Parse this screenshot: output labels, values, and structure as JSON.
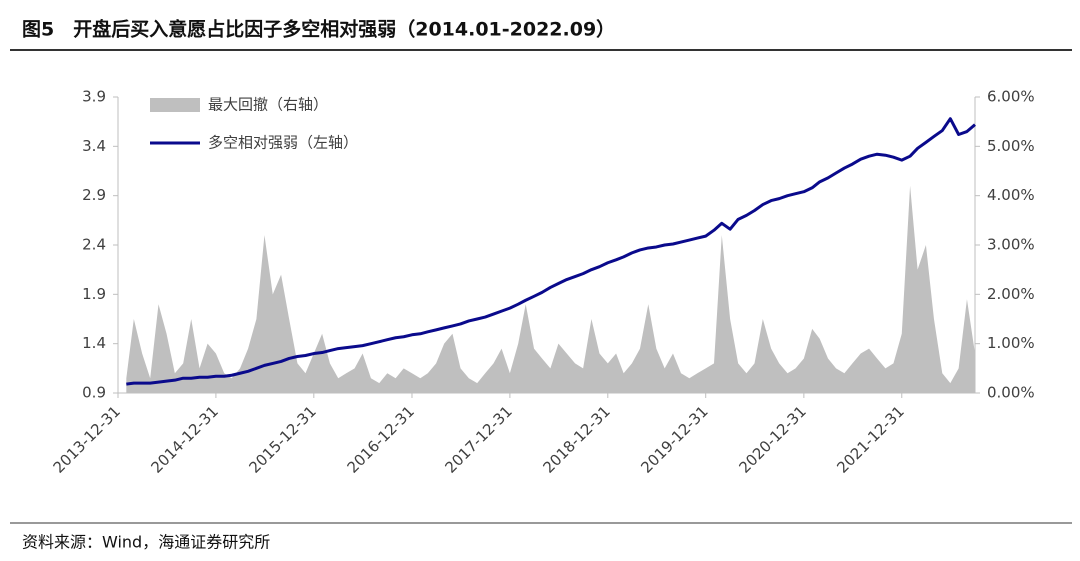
{
  "chart_data": {
    "type": "combo",
    "title": "图5　开盘后买入意愿占比因子多空相对强弱（2014.01-2022.09）",
    "source": "资料来源：Wind，海通证券研究所",
    "x": [
      "2014-01-31",
      "2014-02-28",
      "2014-03-31",
      "2014-04-30",
      "2014-05-31",
      "2014-06-30",
      "2014-07-31",
      "2014-08-31",
      "2014-09-30",
      "2014-10-31",
      "2014-11-30",
      "2014-12-31",
      "2015-01-31",
      "2015-02-28",
      "2015-03-31",
      "2015-04-30",
      "2015-05-31",
      "2015-06-30",
      "2015-07-31",
      "2015-08-31",
      "2015-09-30",
      "2015-10-31",
      "2015-11-30",
      "2015-12-31",
      "2016-01-31",
      "2016-02-29",
      "2016-03-31",
      "2016-04-30",
      "2016-05-31",
      "2016-06-30",
      "2016-07-31",
      "2016-08-31",
      "2016-09-30",
      "2016-10-31",
      "2016-11-30",
      "2016-12-31",
      "2017-01-31",
      "2017-02-28",
      "2017-03-31",
      "2017-04-30",
      "2017-05-31",
      "2017-06-30",
      "2017-07-31",
      "2017-08-31",
      "2017-09-30",
      "2017-10-31",
      "2017-11-30",
      "2017-12-31",
      "2018-01-31",
      "2018-02-28",
      "2018-03-31",
      "2018-04-30",
      "2018-05-31",
      "2018-06-30",
      "2018-07-31",
      "2018-08-31",
      "2018-09-30",
      "2018-10-31",
      "2018-11-30",
      "2018-12-31",
      "2019-01-31",
      "2019-02-28",
      "2019-03-31",
      "2019-04-30",
      "2019-05-31",
      "2019-06-30",
      "2019-07-31",
      "2019-08-31",
      "2019-09-30",
      "2019-10-31",
      "2019-11-30",
      "2019-12-31",
      "2020-01-31",
      "2020-02-29",
      "2020-03-31",
      "2020-04-30",
      "2020-05-31",
      "2020-06-30",
      "2020-07-31",
      "2020-08-31",
      "2020-09-30",
      "2020-10-31",
      "2020-11-30",
      "2020-12-31",
      "2021-01-31",
      "2021-02-28",
      "2021-03-31",
      "2021-04-30",
      "2021-05-31",
      "2021-06-30",
      "2021-07-31",
      "2021-08-31",
      "2021-09-30",
      "2021-10-31",
      "2021-11-30",
      "2021-12-31",
      "2022-01-31",
      "2022-02-28",
      "2022-03-31",
      "2022-04-30",
      "2022-05-31",
      "2022-06-30",
      "2022-07-31",
      "2022-08-31",
      "2022-09-30"
    ],
    "series": [
      {
        "name": "最大回撤（右轴）",
        "kind": "area",
        "axis": "y2",
        "color": "#bfbfbf",
        "values": [
          0.3,
          1.5,
          0.8,
          0.3,
          1.8,
          1.2,
          0.4,
          0.6,
          1.5,
          0.5,
          1.0,
          0.8,
          0.4,
          0.3,
          0.5,
          0.9,
          1.5,
          3.2,
          2.0,
          2.4,
          1.5,
          0.6,
          0.4,
          0.8,
          1.2,
          0.6,
          0.3,
          0.4,
          0.5,
          0.8,
          0.3,
          0.2,
          0.4,
          0.3,
          0.5,
          0.4,
          0.3,
          0.4,
          0.6,
          1.0,
          1.2,
          0.5,
          0.3,
          0.2,
          0.4,
          0.6,
          0.9,
          0.4,
          1.0,
          1.8,
          0.9,
          0.7,
          0.5,
          1.0,
          0.8,
          0.6,
          0.5,
          1.5,
          0.8,
          0.6,
          0.8,
          0.4,
          0.6,
          0.9,
          1.8,
          0.9,
          0.5,
          0.8,
          0.4,
          0.3,
          0.4,
          0.5,
          0.6,
          3.2,
          1.5,
          0.6,
          0.4,
          0.6,
          1.5,
          0.9,
          0.6,
          0.4,
          0.5,
          0.7,
          1.3,
          1.1,
          0.7,
          0.5,
          0.4,
          0.6,
          0.8,
          0.9,
          0.7,
          0.5,
          0.6,
          1.2,
          4.2,
          2.5,
          3.0,
          1.5,
          0.4,
          0.2,
          0.5,
          1.9,
          0.8
        ]
      },
      {
        "name": "多空相对强弱（左轴）",
        "kind": "line",
        "axis": "y",
        "color": "#0a0a8c",
        "values": [
          0.99,
          1.0,
          1.0,
          1.0,
          1.01,
          1.02,
          1.03,
          1.05,
          1.05,
          1.06,
          1.06,
          1.07,
          1.07,
          1.08,
          1.1,
          1.12,
          1.15,
          1.18,
          1.2,
          1.22,
          1.25,
          1.27,
          1.28,
          1.3,
          1.31,
          1.33,
          1.35,
          1.36,
          1.37,
          1.38,
          1.4,
          1.42,
          1.44,
          1.46,
          1.47,
          1.49,
          1.5,
          1.52,
          1.54,
          1.56,
          1.58,
          1.6,
          1.63,
          1.65,
          1.67,
          1.7,
          1.73,
          1.76,
          1.8,
          1.84,
          1.88,
          1.92,
          1.97,
          2.01,
          2.05,
          2.08,
          2.11,
          2.15,
          2.18,
          2.22,
          2.25,
          2.28,
          2.32,
          2.35,
          2.37,
          2.38,
          2.4,
          2.41,
          2.43,
          2.45,
          2.47,
          2.49,
          2.55,
          2.62,
          2.56,
          2.66,
          2.7,
          2.75,
          2.81,
          2.85,
          2.87,
          2.9,
          2.92,
          2.94,
          2.98,
          3.04,
          3.08,
          3.13,
          3.18,
          3.22,
          3.27,
          3.3,
          3.32,
          3.31,
          3.29,
          3.26,
          3.3,
          3.38,
          3.44,
          3.5,
          3.56,
          3.68,
          3.52,
          3.55,
          3.62
        ]
      }
    ],
    "xlim": [
      "2013-12-31",
      "2022-09-30"
    ],
    "xticks": [
      "2013-12-31",
      "2014-12-31",
      "2015-12-31",
      "2016-12-31",
      "2017-12-31",
      "2018-12-31",
      "2019-12-31",
      "2020-12-31",
      "2021-12-31"
    ],
    "ylim": [
      0.9,
      3.9
    ],
    "yticks": [
      0.9,
      1.4,
      1.9,
      2.4,
      2.9,
      3.4,
      3.9
    ],
    "y2lim": [
      0,
      6
    ],
    "y2ticks": [
      {
        "value": 0,
        "label": "0.00%"
      },
      {
        "value": 1,
        "label": "1.00%"
      },
      {
        "value": 2,
        "label": "2.00%"
      },
      {
        "value": 3,
        "label": "3.00%"
      },
      {
        "value": 4,
        "label": "4.00%"
      },
      {
        "value": 5,
        "label": "5.00%"
      },
      {
        "value": 6,
        "label": "6.00%"
      }
    ],
    "legend": "upper-left"
  }
}
